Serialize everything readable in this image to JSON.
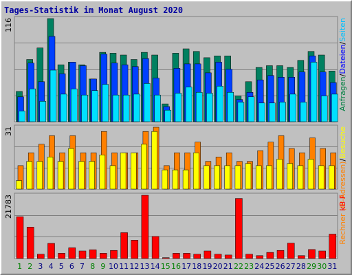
{
  "chart_data": [
    {
      "type": "bar",
      "title": "Tages-Statistik im Monat August 2020",
      "panel": "top",
      "ymax_label": "116",
      "right_label_parts": [
        {
          "text": "Anfragen",
          "color": "#008040"
        },
        {
          "text": "/",
          "color": "#000000"
        },
        {
          "text": "Dateien",
          "color": "#0000ff"
        },
        {
          "text": "/",
          "color": "#000000"
        },
        {
          "text": "Seiten",
          "color": "#00c0ff"
        }
      ],
      "days": [
        "1",
        "2",
        "3",
        "4",
        "5",
        "6",
        "7",
        "8",
        "9",
        "10",
        "11",
        "12",
        "13",
        "14",
        "15",
        "16",
        "17",
        "18",
        "19",
        "20",
        "21",
        "22",
        "23",
        "24",
        "25",
        "26",
        "27",
        "28",
        "29",
        "30",
        "31"
      ],
      "series": [
        {
          "name": "Anfragen",
          "color": "#008060",
          "values": [
            34,
            70,
            83,
            116,
            64,
            67,
            64,
            48,
            78,
            77,
            75,
            70,
            78,
            75,
            20,
            77,
            82,
            79,
            72,
            74,
            74,
            29,
            45,
            61,
            63,
            63,
            61,
            69,
            79,
            75,
            57
          ]
        },
        {
          "name": "Dateien",
          "color": "#0040ff",
          "values": [
            28,
            66,
            45,
            96,
            54,
            67,
            63,
            48,
            76,
            66,
            64,
            62,
            71,
            49,
            17,
            60,
            65,
            65,
            55,
            67,
            59,
            25,
            33,
            47,
            52,
            50,
            50,
            56,
            74,
            56,
            44
          ]
        },
        {
          "name": "Seiten",
          "color": "#00e0ff",
          "values": [
            12,
            37,
            23,
            58,
            31,
            37,
            30,
            35,
            42,
            30,
            30,
            31,
            43,
            30,
            13,
            32,
            39,
            33,
            32,
            40,
            33,
            22,
            28,
            21,
            21,
            22,
            31,
            22,
            67,
            29,
            31
          ]
        }
      ]
    },
    {
      "type": "bar",
      "panel": "middle",
      "ymax_label": "31",
      "right_label_parts": [
        {
          "text": "Rechner (IP-Adressen)",
          "color": "#ff8000"
        },
        {
          "text": "/",
          "color": "#000000"
        },
        {
          "text": "Besuche",
          "color": "#ffff00"
        }
      ],
      "series": [
        {
          "name": "Rechner (IP-Adressen)",
          "color": "#ff8000",
          "values": [
            11,
            17,
            21,
            25,
            17,
            25,
            17,
            17,
            27,
            17,
            17,
            17,
            27,
            29,
            11,
            17,
            17,
            22,
            13,
            15,
            17,
            13,
            13,
            18,
            22,
            25,
            19,
            17,
            24,
            19,
            17
          ]
        },
        {
          "name": "Besuche",
          "color": "#ffff00",
          "values": [
            4,
            13,
            13,
            15,
            13,
            19,
            13,
            13,
            16,
            11,
            17,
            17,
            21,
            27,
            9,
            9,
            9,
            17,
            11,
            11,
            11,
            11,
            12,
            11,
            11,
            14,
            12,
            11,
            14,
            11,
            11
          ]
        }
      ]
    },
    {
      "type": "bar",
      "panel": "bottom",
      "ymax_label": "21783",
      "right_label_parts": [
        {
          "text": "kB F",
          "color": "#ff0000"
        }
      ],
      "series": [
        {
          "name": "kB F",
          "color": "#ff0000",
          "values": [
            14400,
            10800,
            1500,
            5200,
            1800,
            3700,
            2600,
            3000,
            1800,
            2800,
            8900,
            6300,
            21783,
            7600,
            300,
            1800,
            1800,
            1500,
            2600,
            1500,
            1200,
            20700,
            1500,
            1000,
            2100,
            2800,
            5300,
            1000,
            3100,
            2600,
            8400
          ]
        }
      ]
    }
  ],
  "weekend_days": [
    "1",
    "2",
    "8",
    "9",
    "15",
    "16",
    "22",
    "23",
    "29",
    "30"
  ],
  "colors": {
    "weekday_label": "#000080",
    "weekend_label": "#008000",
    "grid": "#808080",
    "panel_bg": "#c0c0c0"
  }
}
